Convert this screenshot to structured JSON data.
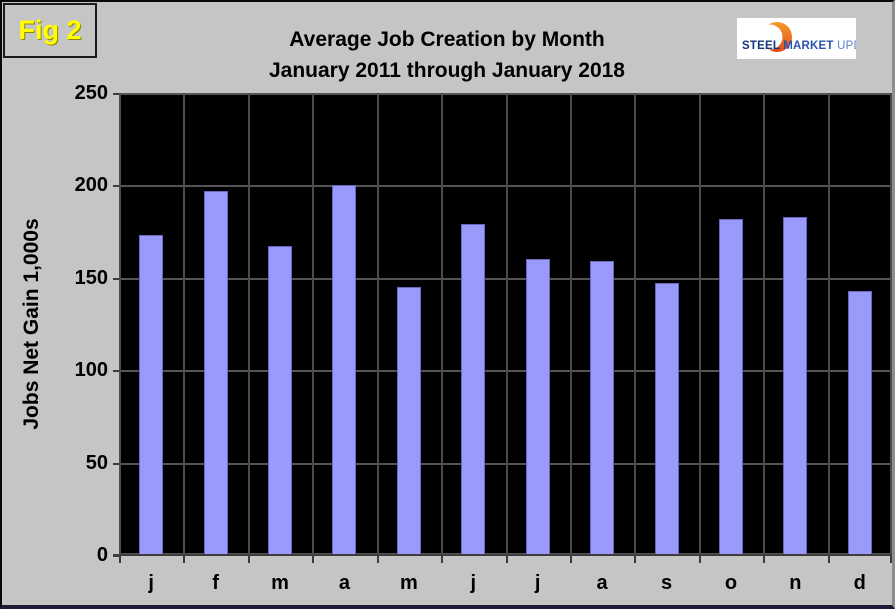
{
  "figure_label": "Fig 2",
  "header": {
    "title": "Average Job Creation by Month",
    "subtitle": "January 2011 through January 2018"
  },
  "logo": {
    "steel": "STEEL",
    "market": "MARKET",
    "update": "UPDATE"
  },
  "chart_data": {
    "type": "bar",
    "categories": [
      "j",
      "f",
      "m",
      "a",
      "m",
      "j",
      "j",
      "a",
      "s",
      "o",
      "n",
      "d"
    ],
    "values": [
      173,
      197,
      167,
      200,
      145,
      179,
      160,
      159,
      147,
      182,
      183,
      143
    ],
    "title": "Average Job Creation by Month",
    "subtitle": "January 2011 through January 2018",
    "xlabel": "",
    "ylabel": "Jobs Net Gain 1,000s",
    "ylim": [
      0,
      250
    ],
    "yticks": [
      0,
      50,
      100,
      150,
      200,
      250
    ],
    "grid": true,
    "legend": "none",
    "bar_color": "#9a9afb",
    "plot_background": "#000000"
  },
  "colors": {
    "page_background": "#c5c5c5",
    "figure_label_color": "#ffff00",
    "bar_fill": "#9a9afb",
    "gridline": "#555555",
    "logo_steel_blue": "#15357d",
    "logo_light_blue": "#5b80d2",
    "logo_orange": "#e8571e"
  }
}
